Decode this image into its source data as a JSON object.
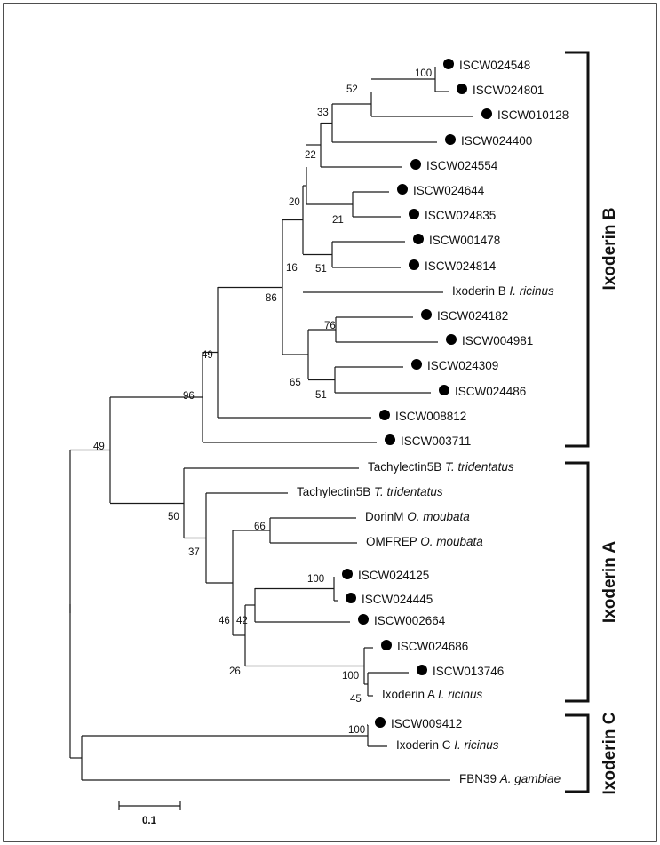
{
  "taxa": [
    {
      "id": "t01",
      "code": "ISCW024548",
      "dot": true
    },
    {
      "id": "t02",
      "code": "ISCW024801",
      "dot": true
    },
    {
      "id": "t03",
      "code": "ISCW010128",
      "dot": true
    },
    {
      "id": "t04",
      "code": "ISCW024400",
      "dot": true
    },
    {
      "id": "t05",
      "code": "ISCW024554",
      "dot": true
    },
    {
      "id": "t06",
      "code": "ISCW024644",
      "dot": true
    },
    {
      "id": "t07",
      "code": "ISCW024835",
      "dot": true
    },
    {
      "id": "t08",
      "code": "ISCW001478",
      "dot": true
    },
    {
      "id": "t09",
      "code": "ISCW024814",
      "dot": true
    },
    {
      "id": "t10",
      "name": "Ixoderin B",
      "species": "I. ricinus",
      "dot": false
    },
    {
      "id": "t11",
      "code": "ISCW024182",
      "dot": true
    },
    {
      "id": "t12",
      "code": "ISCW004981",
      "dot": true
    },
    {
      "id": "t13",
      "code": "ISCW024309",
      "dot": true
    },
    {
      "id": "t14",
      "code": "ISCW024486",
      "dot": true
    },
    {
      "id": "t15",
      "code": "ISCW008812",
      "dot": true
    },
    {
      "id": "t16",
      "code": "ISCW003711",
      "dot": true
    },
    {
      "id": "t17",
      "name": "Tachylectin5B",
      "species": "T. tridentatus",
      "dot": false
    },
    {
      "id": "t18",
      "name": "Tachylectin5B",
      "species": "T. tridentatus",
      "dot": false
    },
    {
      "id": "t19",
      "name": "DorinM",
      "species": "O. moubata",
      "dot": false
    },
    {
      "id": "t20",
      "name": "OMFREP",
      "species": "O. moubata",
      "dot": false
    },
    {
      "id": "t21",
      "code": "ISCW024125",
      "dot": true
    },
    {
      "id": "t22",
      "code": "ISCW024445",
      "dot": true
    },
    {
      "id": "t23",
      "code": "ISCW002664",
      "dot": true
    },
    {
      "id": "t24",
      "code": "ISCW024686",
      "dot": true
    },
    {
      "id": "t25",
      "code": "ISCW013746",
      "dot": true
    },
    {
      "id": "t26",
      "name": "Ixoderin A",
      "species": "I. ricinus",
      "dot": false
    },
    {
      "id": "t27",
      "code": "ISCW009412",
      "dot": true
    },
    {
      "id": "t28",
      "name": "Ixoderin C",
      "species": "I. ricinus",
      "dot": false
    },
    {
      "id": "t29",
      "name": "FBN39",
      "species": "A. gambiae",
      "dot": false
    }
  ],
  "bootstrap": [
    {
      "id": "b-100a",
      "value": "100"
    },
    {
      "id": "b-52",
      "value": "52"
    },
    {
      "id": "b-33",
      "value": "33"
    },
    {
      "id": "b-22",
      "value": "22"
    },
    {
      "id": "b-21",
      "value": "21"
    },
    {
      "id": "b-20",
      "value": "20"
    },
    {
      "id": "b-16",
      "value": "16"
    },
    {
      "id": "b-51a",
      "value": "51"
    },
    {
      "id": "b-86",
      "value": "86"
    },
    {
      "id": "b-76",
      "value": "76"
    },
    {
      "id": "b-65",
      "value": "65"
    },
    {
      "id": "b-51b",
      "value": "51"
    },
    {
      "id": "b-49a",
      "value": "49"
    },
    {
      "id": "b-96",
      "value": "96"
    },
    {
      "id": "b-49b",
      "value": "49"
    },
    {
      "id": "b-50",
      "value": "50"
    },
    {
      "id": "b-37",
      "value": "37"
    },
    {
      "id": "b-66",
      "value": "66"
    },
    {
      "id": "b-100b",
      "value": "100"
    },
    {
      "id": "b-46",
      "value": "46"
    },
    {
      "id": "b-42",
      "value": "42"
    },
    {
      "id": "b-26",
      "value": "26"
    },
    {
      "id": "b-100c",
      "value": "100"
    },
    {
      "id": "b-45",
      "value": "45"
    },
    {
      "id": "b-100d",
      "value": "100"
    }
  ],
  "clades": [
    {
      "id": "clade-b",
      "label": "Ixoderin B"
    },
    {
      "id": "clade-a",
      "label": "Ixoderin A"
    },
    {
      "id": "clade-c",
      "label": "Ixoderin C"
    }
  ],
  "scale_bar": {
    "value": 0.1,
    "label": "0.1"
  }
}
